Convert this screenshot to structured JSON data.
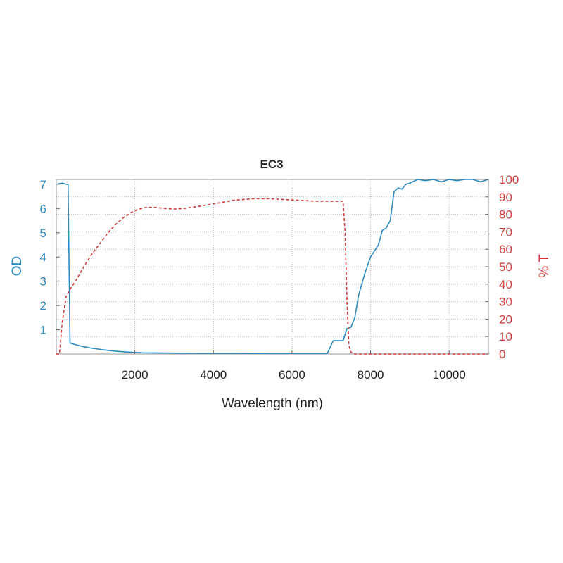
{
  "chart_data": {
    "type": "line",
    "title": "EC3",
    "xlabel": "Wavelength (nm)",
    "ylabel_left": "OD",
    "ylabel_right": "% T",
    "xlim": [
      0,
      11000
    ],
    "ylim_left": [
      0,
      7.2
    ],
    "ylim_right": [
      0,
      100
    ],
    "x_ticks": [
      2000,
      4000,
      6000,
      8000,
      10000
    ],
    "y_ticks_left": [
      1,
      2,
      3,
      4,
      5,
      6,
      7
    ],
    "y_ticks_right": [
      0,
      10,
      20,
      30,
      40,
      50,
      60,
      70,
      80,
      90,
      100
    ],
    "grid": true,
    "colors": {
      "od": "#2e8bc0",
      "t": "#d03a3a",
      "grid": "#b0b0b0"
    },
    "series": [
      {
        "axis": "left",
        "style": "solid",
        "x": [
          0,
          150,
          250,
          300,
          350,
          500,
          700,
          900,
          1200,
          1500,
          1800,
          2200,
          2800,
          3500,
          4500,
          5500,
          6500,
          6900,
          7050,
          7300,
          7400,
          7500,
          7600,
          7700,
          7850,
          8000,
          8100,
          8200,
          8300,
          8400,
          8500,
          8600,
          8700,
          8800,
          8900,
          9000,
          9200,
          9400,
          9600,
          9800,
          10000,
          10200,
          10400,
          10600,
          10800,
          11000
        ],
        "values": [
          7.0,
          7.05,
          7.0,
          7.0,
          0.45,
          0.38,
          0.3,
          0.24,
          0.17,
          0.12,
          0.08,
          0.05,
          0.04,
          0.03,
          0.03,
          0.02,
          0.02,
          0.02,
          0.55,
          0.55,
          1.05,
          1.1,
          1.5,
          2.45,
          3.3,
          4.0,
          4.25,
          4.5,
          5.1,
          5.2,
          5.5,
          6.7,
          6.85,
          6.8,
          7.0,
          7.05,
          7.2,
          7.15,
          7.2,
          7.1,
          7.2,
          7.15,
          7.2,
          7.2,
          7.1,
          7.2
        ]
      },
      {
        "axis": "right",
        "style": "dashed",
        "x": [
          0,
          80,
          150,
          250,
          350,
          500,
          700,
          900,
          1100,
          1300,
          1500,
          1700,
          1900,
          2100,
          2300,
          2500,
          2700,
          3000,
          3300,
          3600,
          4000,
          4500,
          5000,
          5400,
          5800,
          6200,
          6600,
          7000,
          7300,
          7350,
          7400,
          7450,
          7500,
          7600,
          7800,
          8000,
          9000,
          10000,
          11000
        ],
        "values": [
          0,
          0,
          18,
          33,
          37,
          42,
          50,
          57,
          63,
          69,
          74,
          78,
          81,
          83,
          84,
          84,
          83.5,
          83,
          83.5,
          84.5,
          86,
          88,
          89,
          89,
          88.5,
          88,
          87.5,
          87.5,
          87.5,
          70,
          30,
          5,
          1,
          0,
          0,
          0,
          0,
          0,
          0
        ]
      }
    ]
  }
}
